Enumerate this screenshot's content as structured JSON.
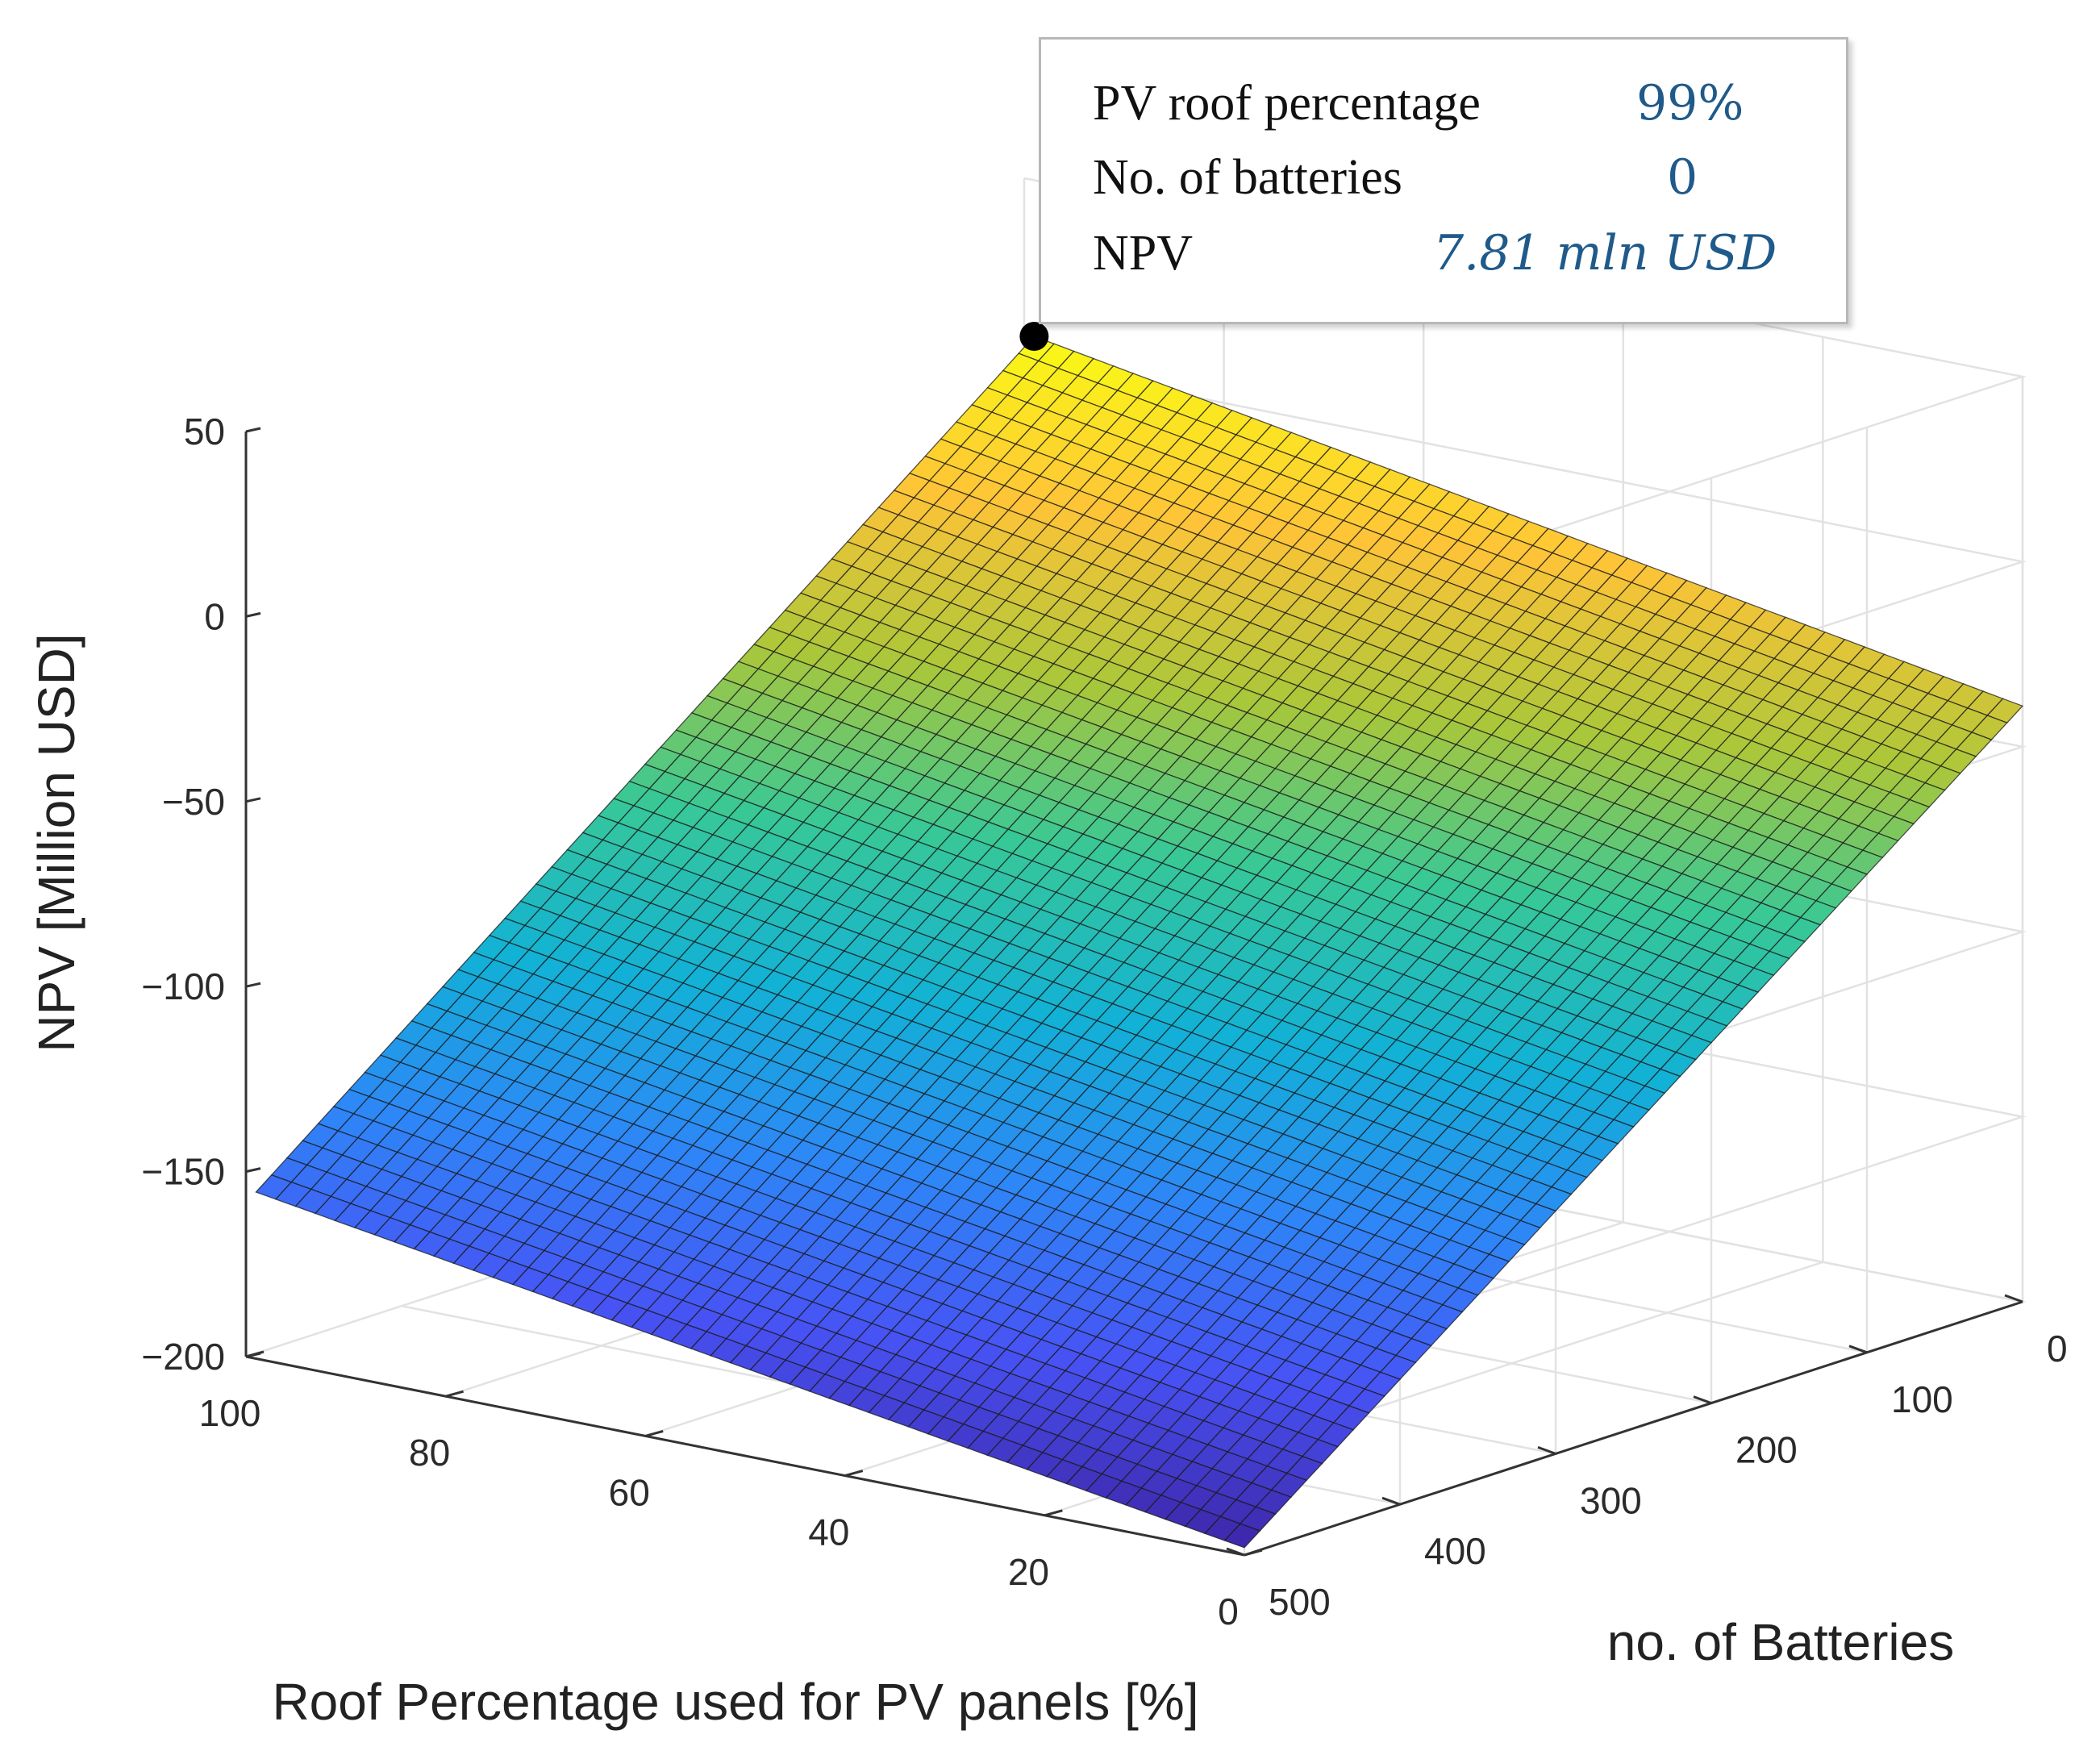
{
  "chart_data": {
    "type": "surface",
    "title": "",
    "x_axis": {
      "label": "Roof Percentage used for PV panels [%]",
      "ticks": [
        0,
        20,
        40,
        60,
        80,
        100
      ],
      "range": [
        0,
        100
      ]
    },
    "y_axis": {
      "label": "no. of Batteries",
      "ticks": [
        0,
        100,
        200,
        300,
        400,
        500
      ],
      "range": [
        0,
        500
      ]
    },
    "z_axis": {
      "label": "NPV [Million USD]",
      "ticks": [
        50,
        0,
        -50,
        -100,
        -150,
        -200
      ],
      "range": [
        -200,
        50
      ]
    },
    "surface": {
      "description_model": "planar",
      "corners": [
        {
          "roof_pct": 99,
          "batteries": 0,
          "npv": 7.81
        },
        {
          "roof_pct": 0,
          "batteries": 0,
          "npv": -39
        },
        {
          "roof_pct": 99,
          "batteries": 500,
          "npv": -155
        },
        {
          "roof_pct": 0,
          "batteries": 500,
          "npv": -198
        }
      ],
      "colormap": "parula"
    },
    "datatip": {
      "rows": [
        {
          "label": "PV roof percentage",
          "value": "99%"
        },
        {
          "label": "No. of batteries",
          "value": "0"
        },
        {
          "label": "NPV",
          "value": "7.81 mln USD"
        }
      ],
      "point": {
        "roof_pct": 99,
        "batteries": 0,
        "npv": 7.81
      }
    }
  }
}
